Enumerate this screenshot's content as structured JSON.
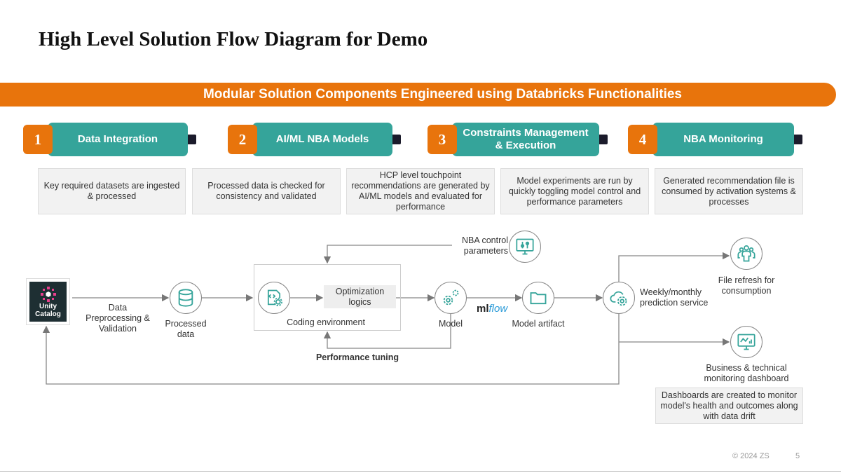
{
  "title": "High Level Solution Flow Diagram for Demo",
  "banner": "Modular Solution Components Engineered using Databricks Functionalities",
  "steps": [
    {
      "num": "1",
      "label": "Data Integration"
    },
    {
      "num": "2",
      "label": "AI/ML NBA Models"
    },
    {
      "num": "3",
      "label": "Constraints Management & Execution"
    },
    {
      "num": "4",
      "label": "NBA Monitoring"
    }
  ],
  "descriptions": [
    "Key required datasets are ingested & processed",
    "Processed data is checked for consistency and validated",
    "HCP level touchpoint recommendations are generated by AI/ML models and evaluated for performance",
    "Model experiments are run by quickly toggling model control and performance parameters",
    "Generated recommendation file is consumed by activation systems & processes"
  ],
  "flow": {
    "unity_catalog": "Unity Catalog",
    "preprocessing": "Data Preprocessing & Validation",
    "processed_data": "Processed data",
    "optimization": "Optimization logics",
    "coding_env": "Coding environment",
    "performance_tuning": "Performance tuning",
    "nba_control": "NBA control parameters",
    "model": "Model",
    "mlflow": "mlflow",
    "model_artifact": "Model artifact",
    "prediction": "Weekly/monthly prediction service",
    "file_refresh": "File refresh for consumption",
    "dashboard": "Business & technical monitoring dashboard",
    "dashboard_desc": "Dashboards are created to monitor model's health and outcomes along with data drift"
  },
  "footer": {
    "copyright": "© 2024 ZS",
    "page": "5"
  },
  "colors": {
    "orange": "#e8740c",
    "teal": "#35a49a",
    "tab": "#1b1b2b"
  }
}
